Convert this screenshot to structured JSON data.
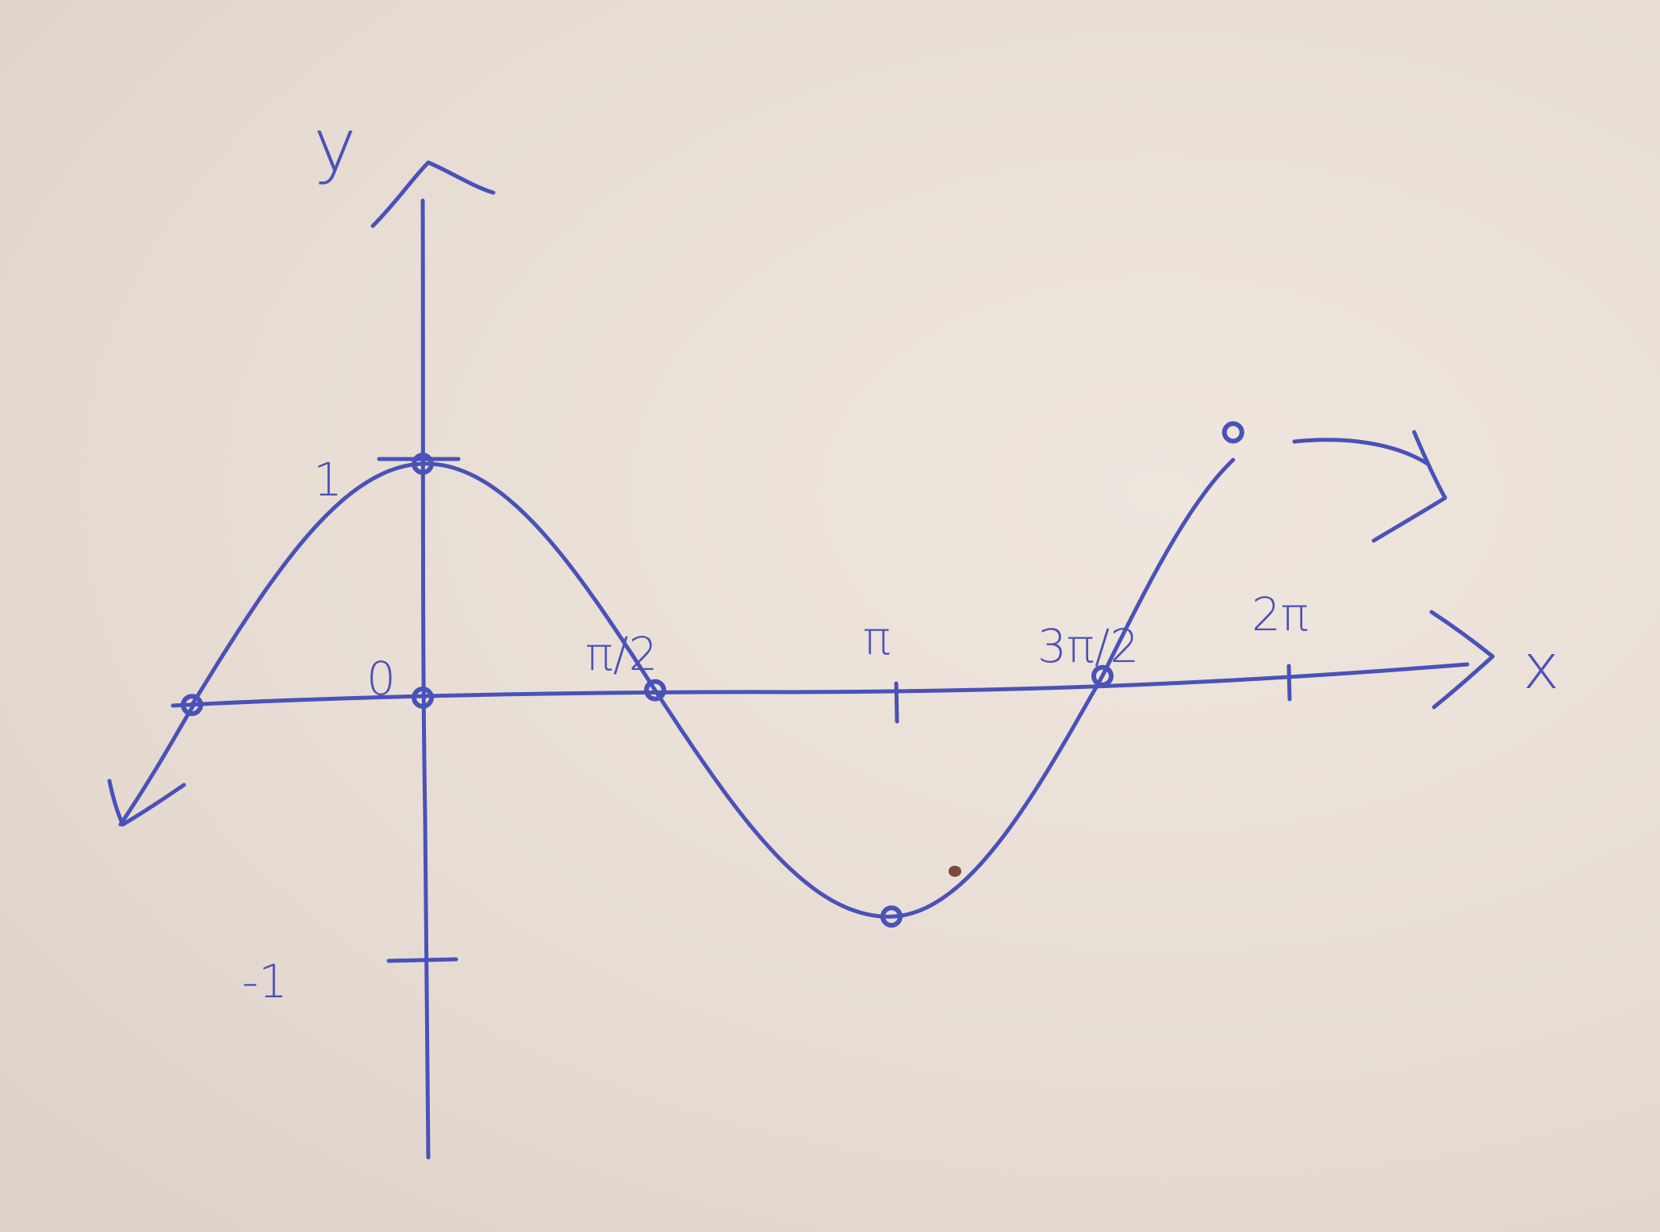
{
  "colors": {
    "ink": "#4a52b8",
    "paper": "#e9dfd7",
    "speck": "#7a4a3a"
  },
  "chart_data": {
    "type": "line",
    "xlabel": "x",
    "ylabel": "y",
    "x_ticks": [
      {
        "value": 0,
        "label": "0"
      },
      {
        "value": 1.5708,
        "label": "π/2"
      },
      {
        "value": 3.1416,
        "label": "π"
      },
      {
        "value": 4.7124,
        "label": "3π/2"
      },
      {
        "value": 6.2832,
        "label": "2π"
      }
    ],
    "y_ticks": [
      {
        "value": 1,
        "label": "1"
      },
      {
        "value": -1,
        "label": "-1"
      }
    ],
    "xlim": [
      -1.6,
      6.9
    ],
    "ylim": [
      -1.7,
      2.2
    ],
    "series": [
      {
        "x": [
          -1.5708,
          -0.7854,
          0,
          0.7854,
          1.5708,
          2.3562,
          3.1416,
          3.927,
          4.7124,
          5.4978,
          6.2832
        ],
        "y": [
          0,
          0.7071,
          1,
          0.7071,
          0,
          -0.7071,
          -1,
          -0.7071,
          0,
          0.7071,
          1
        ]
      }
    ],
    "marked_points": [
      {
        "x": -1.5708,
        "y": 0
      },
      {
        "x": 0,
        "y": 1
      },
      {
        "x": 0,
        "y": 0
      },
      {
        "x": 1.5708,
        "y": 0
      },
      {
        "x": 3.1416,
        "y": -1
      },
      {
        "x": 4.7124,
        "y": 0
      },
      {
        "x": 5.8,
        "y": 1
      }
    ],
    "grid": false,
    "legend": "none"
  }
}
